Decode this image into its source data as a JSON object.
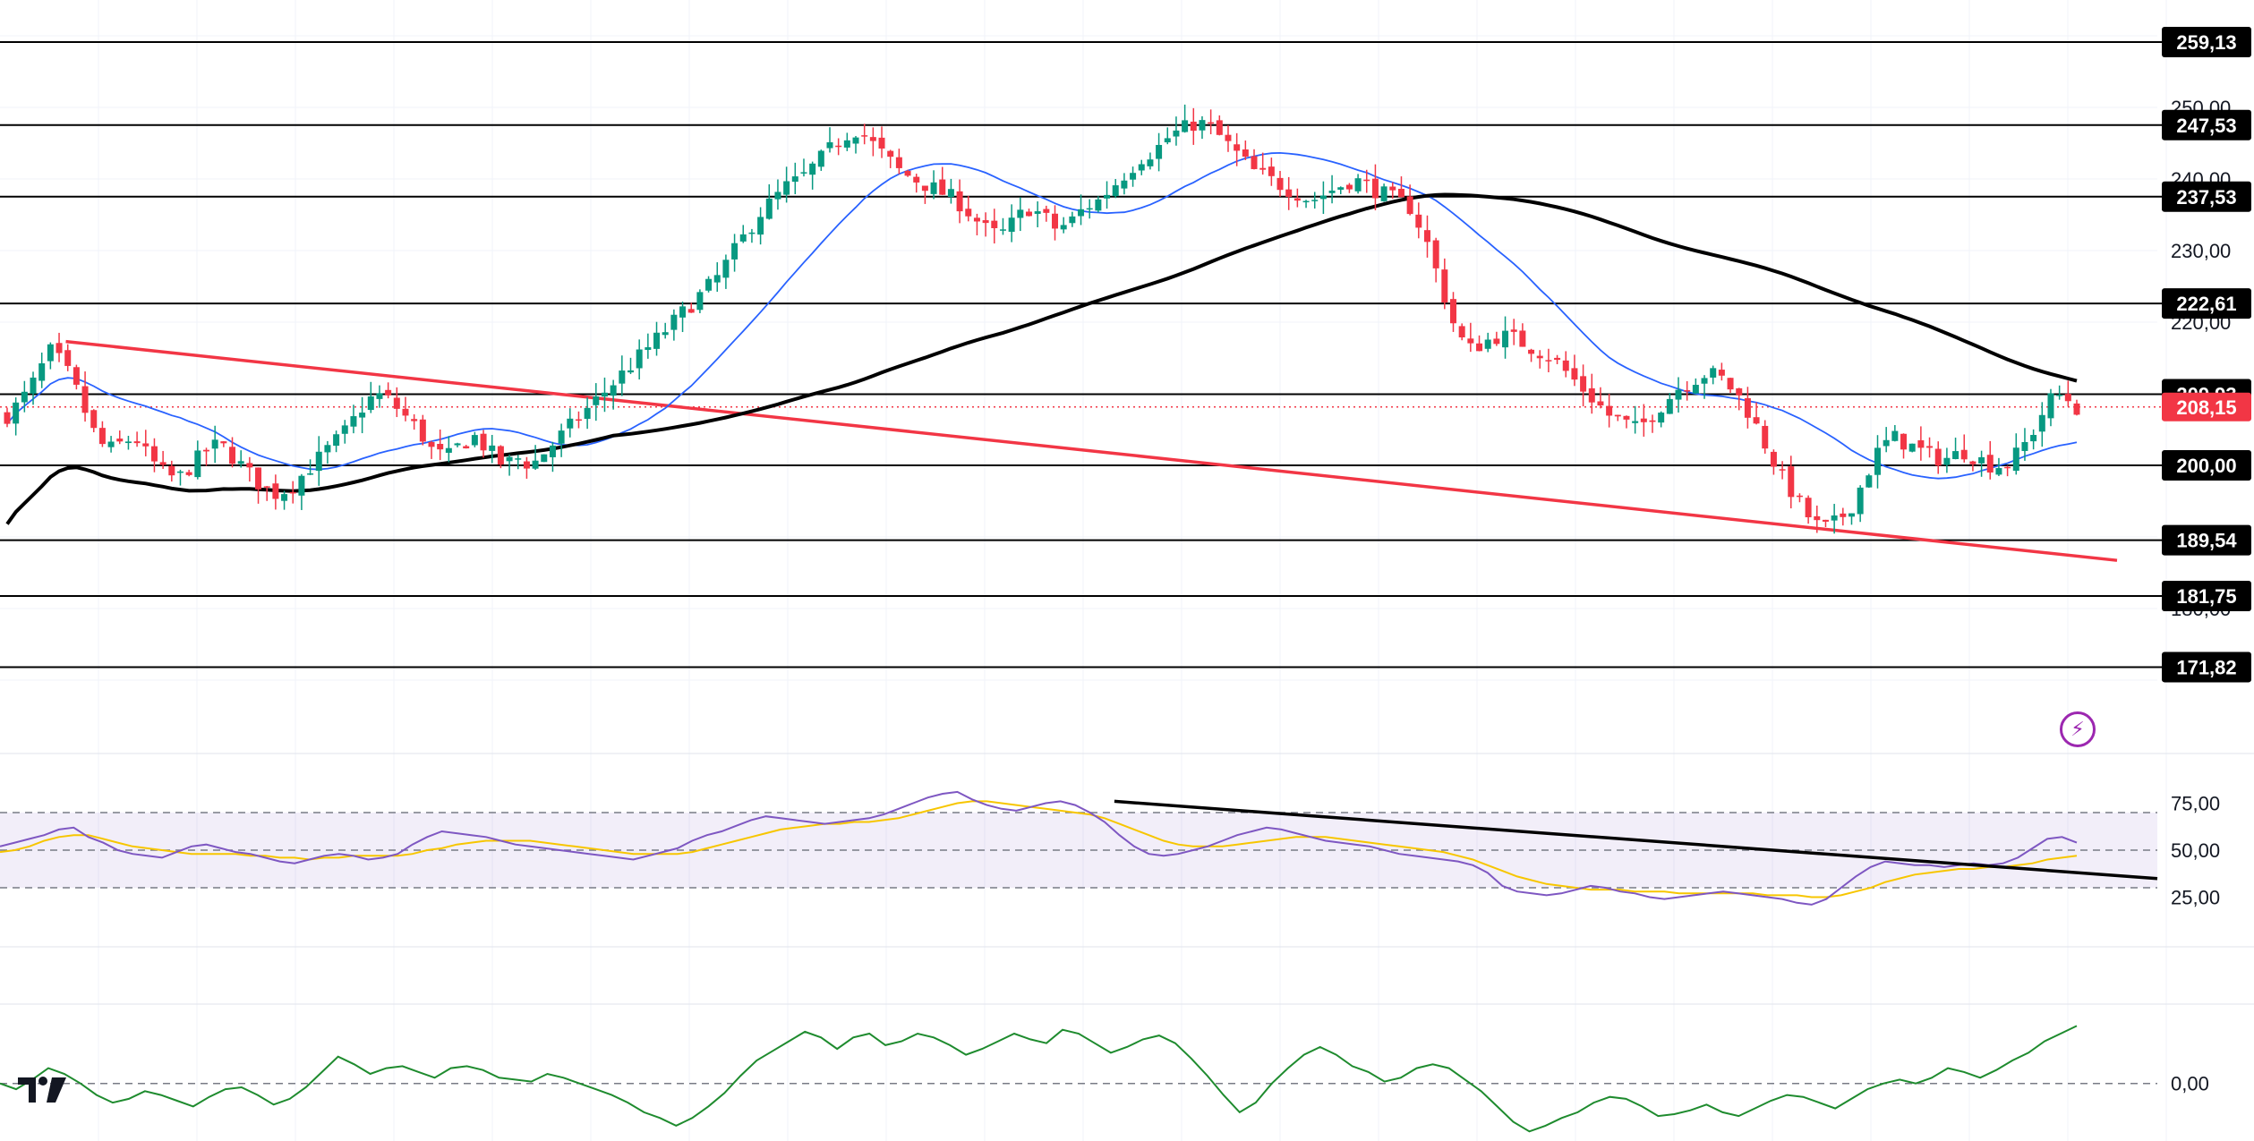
{
  "chart_data": [
    {
      "type": "candlestick",
      "title": "",
      "ylim": [
        160,
        265
      ],
      "price_axis_ticks": [
        "250,00",
        "240,00",
        "230,00",
        "220,00",
        "180,00"
      ],
      "support_resistance_levels": [
        {
          "value": 259.13,
          "label": "259,13"
        },
        {
          "value": 247.53,
          "label": "247,53"
        },
        {
          "value": 237.53,
          "label": "237,53"
        },
        {
          "value": 222.61,
          "label": "222,61"
        },
        {
          "value": 209.93,
          "label": "209,93"
        },
        {
          "value": 200.0,
          "label": "200,00"
        },
        {
          "value": 189.54,
          "label": "189,54"
        },
        {
          "value": 181.75,
          "label": "181,75"
        },
        {
          "value": 171.82,
          "label": "171,82"
        }
      ],
      "last_price": {
        "value": 208.15,
        "label": "208,15"
      },
      "candle_count": 240,
      "close_path": [
        207,
        209,
        212,
        216,
        214,
        210,
        205,
        202,
        203,
        204,
        201,
        199,
        198,
        200,
        202,
        203,
        201,
        199,
        197,
        196,
        197,
        199,
        201,
        203,
        205,
        208,
        210,
        209,
        207,
        205,
        202,
        201,
        203,
        204,
        202,
        200,
        201,
        200,
        202,
        204,
        206,
        208,
        210,
        212,
        214,
        216,
        218,
        220,
        222,
        224,
        226,
        229,
        232,
        235,
        237,
        239,
        240,
        242,
        244,
        246,
        247,
        245,
        243,
        241,
        240,
        239,
        238,
        237,
        235,
        233,
        232,
        234,
        236,
        235,
        233,
        234,
        236,
        237,
        239,
        241,
        243,
        244,
        246,
        247,
        248,
        247,
        245,
        243,
        241,
        240,
        239,
        238,
        237,
        238,
        239,
        240,
        239,
        238,
        237,
        236,
        232,
        226,
        220,
        216,
        217,
        218,
        218,
        217,
        216,
        215,
        213,
        211,
        209,
        207,
        206,
        205,
        207,
        209,
        211,
        212,
        213,
        212,
        210,
        207,
        203,
        199,
        196,
        193,
        191,
        192,
        194,
        198,
        202,
        204,
        203,
        202,
        201,
        201,
        202,
        201,
        200,
        200,
        202,
        205,
        209,
        210,
        208
      ],
      "colors": {
        "up": "#089981",
        "down": "#f23645",
        "last_price_badge": "#f23645"
      },
      "overlays": [
        {
          "kind": "moving-average",
          "color": "#2962ff"
        },
        {
          "kind": "moving-average",
          "color": "#000000"
        },
        {
          "kind": "trendline",
          "color": "#f23645",
          "points": [
            [
              0.0292,
              217.3
            ],
            [
              0.94,
              186.7
            ]
          ]
        }
      ]
    },
    {
      "type": "line",
      "name_hint": "",
      "ylim": [
        0,
        100
      ],
      "axis_ticks": [
        "75,00",
        "50,00",
        "25,00"
      ],
      "levels": [
        70,
        50,
        30
      ],
      "values": [
        52,
        54,
        56,
        58,
        61,
        62,
        57,
        54,
        50,
        48,
        47,
        46,
        49,
        52,
        53,
        51,
        49,
        48,
        46,
        44,
        43,
        45,
        47,
        48,
        47,
        45,
        46,
        48,
        53,
        57,
        60,
        59,
        58,
        57,
        55,
        53,
        52,
        51,
        50,
        49,
        48,
        47,
        46,
        45,
        47,
        49,
        51,
        55,
        58,
        60,
        63,
        66,
        68,
        67,
        66,
        65,
        64,
        65,
        66,
        67,
        69,
        72,
        75,
        78,
        80,
        81,
        77,
        74,
        72,
        71,
        73,
        75,
        76,
        74,
        70,
        65,
        58,
        52,
        48,
        47,
        48,
        50,
        52,
        55,
        58,
        60,
        62,
        61,
        59,
        57,
        55,
        54,
        53,
        52,
        50,
        48,
        47,
        46,
        45,
        44,
        42,
        38,
        31,
        28,
        27,
        26,
        27,
        29,
        31,
        30,
        28,
        27,
        25,
        24,
        25,
        26,
        27,
        28,
        27,
        26,
        25,
        24,
        22,
        21,
        24,
        30,
        36,
        41,
        44,
        43,
        42,
        42,
        41,
        42,
        43,
        42,
        43,
        46,
        51,
        56,
        57,
        54
      ],
      "signal_values": [
        49,
        50,
        52,
        55,
        57,
        58,
        58,
        56,
        54,
        52,
        51,
        50,
        49,
        48,
        48,
        48,
        48,
        47,
        47,
        46,
        46,
        45,
        46,
        46,
        47,
        47,
        47,
        47,
        48,
        50,
        51,
        53,
        54,
        55,
        55,
        55,
        55,
        54,
        53,
        52,
        51,
        50,
        49,
        48,
        48,
        48,
        48,
        49,
        51,
        53,
        55,
        57,
        59,
        61,
        62,
        63,
        64,
        64,
        65,
        65,
        66,
        67,
        69,
        71,
        73,
        75,
        76,
        76,
        75,
        74,
        73,
        72,
        71,
        70,
        69,
        67,
        64,
        61,
        58,
        55,
        53,
        52,
        52,
        52,
        53,
        54,
        55,
        56,
        57,
        57,
        57,
        56,
        55,
        54,
        53,
        52,
        51,
        50,
        49,
        47,
        45,
        42,
        39,
        36,
        34,
        32,
        31,
        30,
        29,
        29,
        29,
        28,
        28,
        28,
        27,
        27,
        27,
        27,
        27,
        27,
        26,
        26,
        26,
        25,
        25,
        26,
        28,
        30,
        33,
        35,
        37,
        38,
        39,
        40,
        40,
        41,
        41,
        42,
        43,
        45,
        46,
        47
      ],
      "trendline": {
        "color": "#000000",
        "points": [
          [
            0.4944,
            76
          ],
          [
            0.9556,
            35
          ]
        ]
      },
      "colors": {
        "line": "#7e57c2",
        "signal": "#f7c600",
        "band": "#7e57c2"
      }
    },
    {
      "type": "line",
      "ylim": [
        -3,
        4
      ],
      "axis_ticks": [
        "0,00"
      ],
      "zero_line": 0,
      "values": [
        0.0,
        -0.3,
        0.2,
        0.8,
        0.5,
        0.0,
        -0.6,
        -1.0,
        -0.8,
        -0.4,
        -0.6,
        -0.9,
        -1.2,
        -0.7,
        -0.3,
        -0.2,
        -0.6,
        -1.1,
        -0.8,
        -0.2,
        0.6,
        1.4,
        1.0,
        0.5,
        0.8,
        0.9,
        0.6,
        0.3,
        0.8,
        0.9,
        0.7,
        0.3,
        0.2,
        0.1,
        0.5,
        0.3,
        0.0,
        -0.3,
        -0.6,
        -1.0,
        -1.5,
        -1.8,
        -2.2,
        -1.8,
        -1.2,
        -0.5,
        0.4,
        1.2,
        1.7,
        2.2,
        2.7,
        2.4,
        1.8,
        2.4,
        2.6,
        2.0,
        2.2,
        2.6,
        2.4,
        2.0,
        1.5,
        1.8,
        2.2,
        2.6,
        2.3,
        2.1,
        2.8,
        2.6,
        2.1,
        1.6,
        1.9,
        2.3,
        2.5,
        2.1,
        1.3,
        0.4,
        -0.6,
        -1.5,
        -1.0,
        0.0,
        0.8,
        1.5,
        1.9,
        1.5,
        0.9,
        0.6,
        0.1,
        0.3,
        0.8,
        1.0,
        0.8,
        0.2,
        -0.4,
        -1.2,
        -2.0,
        -2.5,
        -2.2,
        -1.8,
        -1.5,
        -1.0,
        -0.7,
        -0.8,
        -1.2,
        -1.7,
        -1.6,
        -1.4,
        -1.1,
        -1.5,
        -1.7,
        -1.3,
        -0.9,
        -0.6,
        -0.7,
        -1.0,
        -1.3,
        -0.8,
        -0.3,
        0.0,
        0.2,
        0.0,
        0.3,
        0.8,
        0.6,
        0.3,
        0.7,
        1.2,
        1.6,
        2.2,
        2.6,
        3.0
      ],
      "colors": {
        "line": "#1e8b2e"
      }
    }
  ]
}
